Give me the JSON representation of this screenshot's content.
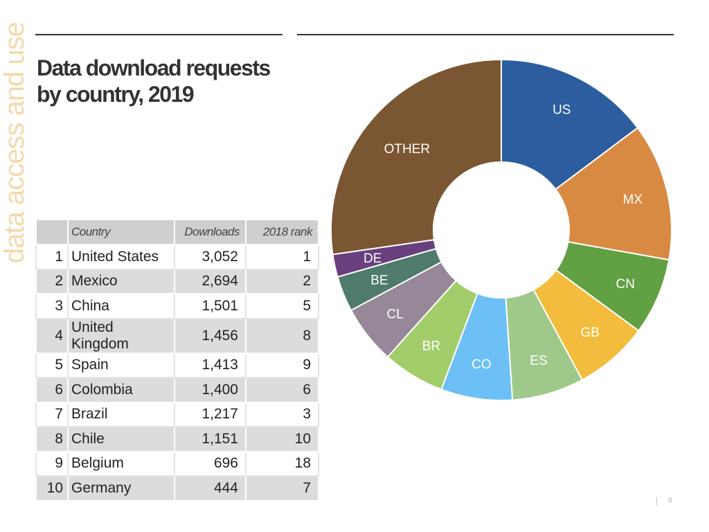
{
  "side_label": "data access and use",
  "title_lines": [
    "Data download requests",
    "by country, 2019"
  ],
  "table": {
    "headers": {
      "rank": "",
      "country": "Country",
      "downloads": "Downloads",
      "rank_2018": "2018 rank"
    },
    "rows": [
      {
        "rank": "1",
        "country": "United States",
        "downloads": "3,052",
        "rank_2018": "1"
      },
      {
        "rank": "2",
        "country": "Mexico",
        "downloads": "2,694",
        "rank_2018": "2"
      },
      {
        "rank": "3",
        "country": "China",
        "downloads": "1,501",
        "rank_2018": "5"
      },
      {
        "rank": "4",
        "country": "United Kingdom",
        "downloads": "1,456",
        "rank_2018": "8"
      },
      {
        "rank": "5",
        "country": "Spain",
        "downloads": "1,413",
        "rank_2018": "9"
      },
      {
        "rank": "6",
        "country": "Colombia",
        "downloads": "1,400",
        "rank_2018": "6"
      },
      {
        "rank": "7",
        "country": "Brazil",
        "downloads": "1,217",
        "rank_2018": "3"
      },
      {
        "rank": "8",
        "country": "Chile",
        "downloads": "1,151",
        "rank_2018": "10"
      },
      {
        "rank": "9",
        "country": "Belgium",
        "downloads": "696",
        "rank_2018": "18"
      },
      {
        "rank": "10",
        "country": "Germany",
        "downloads": "444",
        "rank_2018": "7"
      }
    ]
  },
  "chart_data": {
    "type": "pie",
    "title": "Data download requests by country, 2019",
    "donut": true,
    "slices": [
      {
        "label": "US",
        "value": 3052,
        "color": "#2c5d9e"
      },
      {
        "label": "MX",
        "value": 2694,
        "color": "#d98a42"
      },
      {
        "label": "CN",
        "value": 1501,
        "color": "#61a043"
      },
      {
        "label": "GB",
        "value": 1456,
        "color": "#f3bc3c"
      },
      {
        "label": "ES",
        "value": 1413,
        "color": "#9fc98b"
      },
      {
        "label": "CO",
        "value": 1400,
        "color": "#6cc0f6"
      },
      {
        "label": "BR",
        "value": 1217,
        "color": "#a2cd6a"
      },
      {
        "label": "CL",
        "value": 1151,
        "color": "#968898"
      },
      {
        "label": "BE",
        "value": 696,
        "color": "#4e7b6b"
      },
      {
        "label": "DE",
        "value": 444,
        "color": "#6a3f7e"
      },
      {
        "label": "OTHER",
        "value": 5640,
        "color": "#7b5632"
      }
    ]
  },
  "page_number": "8"
}
